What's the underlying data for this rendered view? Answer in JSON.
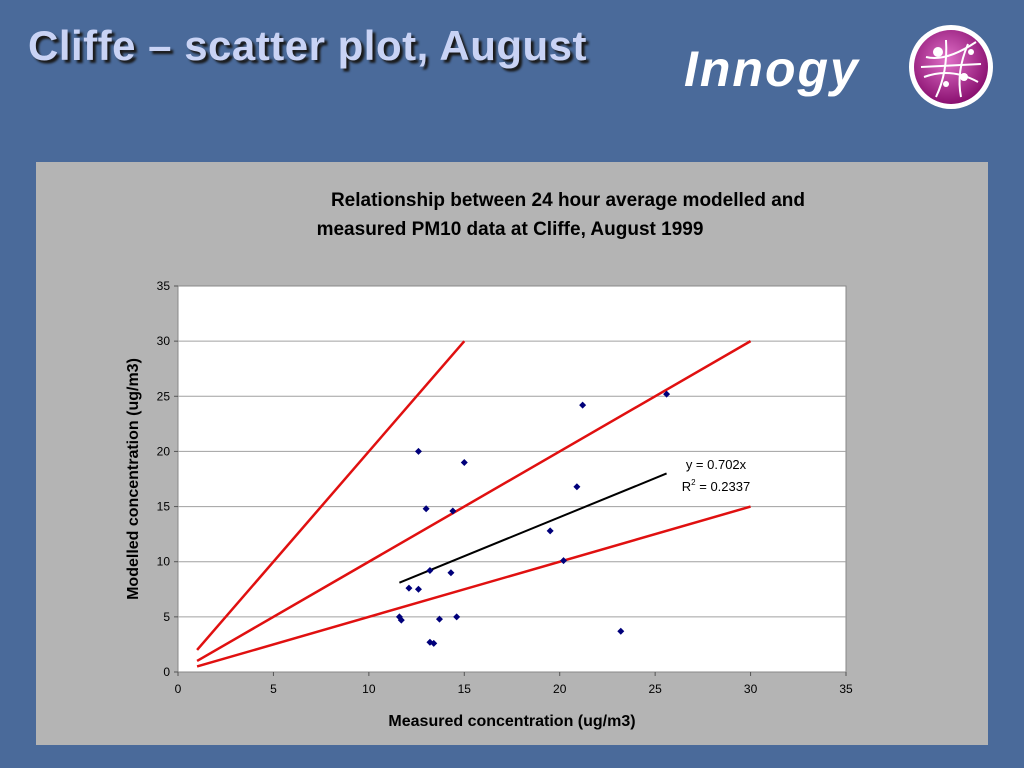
{
  "slide": {
    "title": "Cliffe – scatter plot, August",
    "logo_text": "Innogy"
  },
  "colors": {
    "background": "#4a6a9a",
    "panel": "#b4b4b4",
    "points": "#00007a",
    "reference_lines": "#e01010",
    "trendline": "#000000",
    "logo_mark": "#9a1a80"
  },
  "chart_data": {
    "type": "scatter",
    "title_line1": "Relationship between 24 hour average modelled and",
    "title_line2": "measured PM10 data at Cliffe, August 1999",
    "xlabel": "Measured concentration (ug/m3)",
    "ylabel": "Modelled concentration (ug/m3)",
    "xlim": [
      0,
      35
    ],
    "ylim": [
      0,
      35
    ],
    "xticks": [
      0,
      5,
      10,
      15,
      20,
      25,
      30,
      35
    ],
    "yticks": [
      0,
      5,
      10,
      15,
      20,
      25,
      30,
      35
    ],
    "grid": "horizontal",
    "points": [
      {
        "x": 11.6,
        "y": 5.0
      },
      {
        "x": 11.7,
        "y": 4.7
      },
      {
        "x": 12.1,
        "y": 7.6
      },
      {
        "x": 12.6,
        "y": 7.5
      },
      {
        "x": 12.6,
        "y": 20.0
      },
      {
        "x": 13.0,
        "y": 14.8
      },
      {
        "x": 13.2,
        "y": 9.2
      },
      {
        "x": 13.2,
        "y": 2.7
      },
      {
        "x": 13.4,
        "y": 2.6
      },
      {
        "x": 13.7,
        "y": 4.8
      },
      {
        "x": 14.3,
        "y": 9.0
      },
      {
        "x": 14.4,
        "y": 14.6
      },
      {
        "x": 14.6,
        "y": 5.0
      },
      {
        "x": 15.0,
        "y": 19.0
      },
      {
        "x": 19.5,
        "y": 12.8
      },
      {
        "x": 20.2,
        "y": 10.1
      },
      {
        "x": 20.9,
        "y": 16.8
      },
      {
        "x": 21.2,
        "y": 24.2
      },
      {
        "x": 23.2,
        "y": 3.7
      },
      {
        "x": 25.6,
        "y": 25.2
      }
    ],
    "reference_lines": [
      {
        "from": [
          1,
          2
        ],
        "to": [
          15,
          30
        ]
      },
      {
        "from": [
          1,
          1
        ],
        "to": [
          30,
          30
        ]
      },
      {
        "from": [
          1,
          0.5
        ],
        "to": [
          30,
          15
        ]
      }
    ],
    "trendline": {
      "from": [
        11.6,
        8.1
      ],
      "to": [
        25.6,
        18.0
      ]
    },
    "equation": "y = 0.702x",
    "r2_label": "R",
    "r2_sup": "2",
    "r2_value": " = 0.2337"
  }
}
